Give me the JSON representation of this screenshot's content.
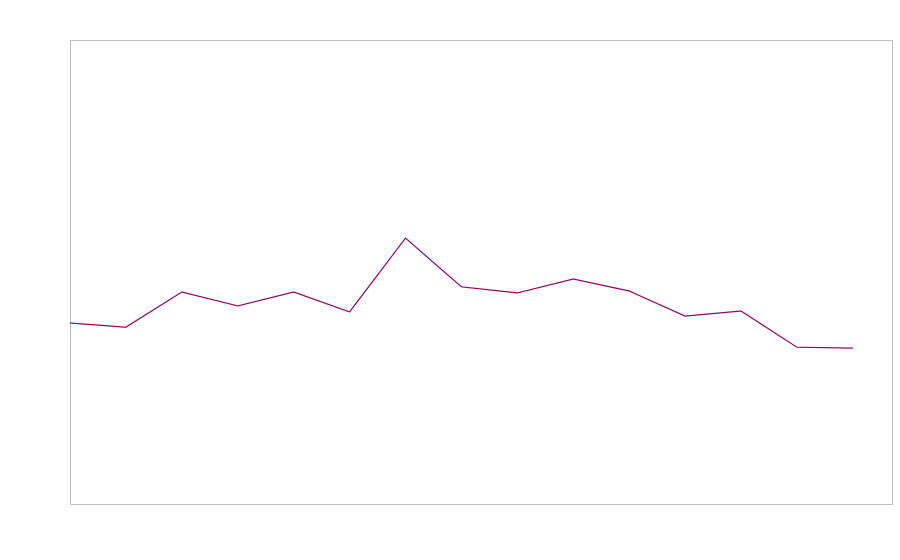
{
  "chart_data": {
    "type": "line",
    "title": "",
    "xlabel": "",
    "ylabel": "",
    "x": [
      0,
      1,
      2,
      3,
      4,
      5,
      6,
      7,
      8,
      9,
      10,
      11,
      12,
      13,
      14
    ],
    "series": [
      {
        "values": [
          39.0,
          38.1,
          45.7,
          42.7,
          45.7,
          41.4,
          57.3,
          46.8,
          45.5,
          48.5,
          45.9,
          40.5,
          41.6,
          33.8,
          33.6
        ],
        "color": "#8b0a5a"
      }
    ],
    "xlim": [
      0,
      14.7
    ],
    "ylim": [
      0,
      100
    ],
    "grid": false,
    "legend": "none",
    "frame_color": "#c0c0c0"
  }
}
